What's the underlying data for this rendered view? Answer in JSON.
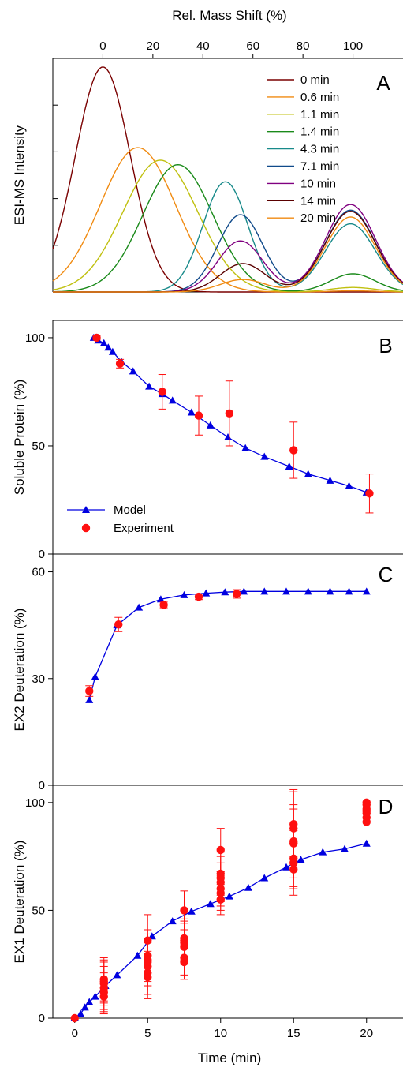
{
  "chart_data": [
    {
      "id": "A",
      "type": "line",
      "panel_letter": "A",
      "xlabel": "Rel. Mass Shift (%)",
      "ylabel": "ESI-MS Intensity",
      "xlim": [
        -20,
        120
      ],
      "ylim": [
        0,
        1
      ],
      "xticks": [
        0,
        20,
        40,
        60,
        80,
        100
      ],
      "xaxis_position": "top",
      "legend": "top-right",
      "grid": false,
      "series": [
        {
          "name": "0 min",
          "color": "#7a0000",
          "peaks": [
            [
              0,
              0.99,
              11
            ]
          ]
        },
        {
          "name": "0.6 min",
          "color": "#f08a10",
          "peaks": [
            [
              14,
              0.635,
              15
            ],
            [
              100,
              0.005,
              9
            ]
          ]
        },
        {
          "name": "1.1 min",
          "color": "#c0c010",
          "peaks": [
            [
              23,
              0.58,
              15
            ],
            [
              100,
              0.02,
              9
            ]
          ]
        },
        {
          "name": "1.4 min",
          "color": "#1a8a1a",
          "peaks": [
            [
              30,
              0.56,
              14
            ],
            [
              100,
              0.08,
              9
            ]
          ]
        },
        {
          "name": "4.3 min",
          "color": "#188a8a",
          "peaks": [
            [
              49,
              0.485,
              9
            ],
            [
              99,
              0.3,
              10
            ]
          ]
        },
        {
          "name": "7.1 min",
          "color": "#104a8a",
          "peaks": [
            [
              55,
              0.34,
              9
            ],
            [
              99,
              0.36,
              10
            ]
          ]
        },
        {
          "name": "10 min",
          "color": "#800080",
          "peaks": [
            [
              55,
              0.225,
              9
            ],
            [
              99,
              0.385,
              10
            ]
          ]
        },
        {
          "name": "14 min",
          "color": "#5a0000",
          "peaks": [
            [
              56,
              0.125,
              9
            ],
            [
              99,
              0.355,
              10
            ]
          ]
        },
        {
          "name": "20 min",
          "color": "#f08a10",
          "peaks": [
            [
              56,
              0.055,
              9
            ],
            [
              99,
              0.33,
              10
            ]
          ]
        }
      ]
    },
    {
      "id": "B",
      "type": "line",
      "panel_letter": "B",
      "ylabel": "Soluble Protein (%)",
      "xlim": [
        -1.5,
        22.5
      ],
      "ylim": [
        0,
        108
      ],
      "yticks": [
        0,
        50,
        100
      ],
      "legend": "bottom-left",
      "legend_entries": [
        "Model",
        "Experiment"
      ],
      "model": {
        "name": "Model",
        "color": "#0000e0",
        "x": [
          1.3,
          1.6,
          2.0,
          2.3,
          2.6,
          3.2,
          4.0,
          5.1,
          6.0,
          6.7,
          8.0,
          9.3,
          10.5,
          11.7,
          13.0,
          14.7,
          16.0,
          17.5,
          18.8,
          20.0
        ],
        "y": [
          100,
          98.8,
          97.5,
          95.5,
          93.5,
          89,
          84.5,
          77.5,
          74,
          71,
          65.5,
          59.5,
          54,
          49,
          45,
          40.5,
          37,
          34,
          31.5,
          28.5
        ]
      },
      "experiment": {
        "name": "Experiment",
        "color": "#ff1010",
        "x": [
          1.5,
          3.1,
          6.0,
          8.5,
          10.6,
          15.0,
          20.2
        ],
        "y": [
          100,
          88,
          75,
          64,
          65,
          48,
          28
        ],
        "err": [
          1,
          2,
          8,
          9,
          15,
          13,
          9
        ]
      }
    },
    {
      "id": "C",
      "type": "line",
      "panel_letter": "C",
      "ylabel": "EX2 Deuteration (%)",
      "xlim": [
        -1.5,
        22.5
      ],
      "ylim": [
        0,
        65
      ],
      "yticks": [
        0,
        30,
        60
      ],
      "model": {
        "color": "#0000e0",
        "x": [
          1.0,
          1.4,
          2.9,
          4.4,
          5.9,
          7.5,
          9.0,
          10.3,
          11.6,
          13.0,
          14.5,
          16.0,
          17.5,
          18.8,
          20.0
        ],
        "y": [
          24,
          30.5,
          45,
          50,
          52.3,
          53.5,
          54,
          54.3,
          54.5,
          54.5,
          54.5,
          54.5,
          54.5,
          54.5,
          54.5
        ]
      },
      "experiment": {
        "color": "#ff1010",
        "x": [
          1.0,
          3.0,
          6.1,
          8.5,
          11.1
        ],
        "y": [
          26.5,
          45.2,
          50.7,
          53,
          53.8
        ],
        "err": [
          1.5,
          2,
          0.8,
          0.8,
          1.2
        ]
      }
    },
    {
      "id": "D",
      "type": "line",
      "panel_letter": "D",
      "xlabel": "Time (min)",
      "ylabel": "EX1 Deuteration (%)",
      "xlim": [
        -1.5,
        22.5
      ],
      "ylim": [
        0,
        108
      ],
      "xticks": [
        0,
        5,
        10,
        15,
        20
      ],
      "yticks": [
        0,
        50,
        100
      ],
      "model": {
        "color": "#0000e0",
        "x": [
          0.0,
          0.4,
          0.7,
          1.0,
          1.4,
          2.1,
          2.9,
          4.3,
          5.3,
          6.7,
          8.0,
          9.3,
          10.6,
          11.9,
          13.0,
          14.5,
          15.5,
          17.0,
          18.5,
          20.0
        ],
        "y": [
          0,
          2,
          5,
          7.5,
          10,
          15,
          20,
          29,
          38,
          45,
          49.5,
          53,
          56.5,
          60.5,
          65,
          70,
          73.5,
          77,
          78.5,
          81
        ]
      },
      "experiment": {
        "color": "#ff1010",
        "x": [
          0,
          2,
          2,
          2,
          2,
          2,
          2,
          5,
          5,
          5,
          5,
          5,
          5,
          5,
          7.5,
          7.5,
          7.5,
          7.5,
          7.5,
          7.5,
          7.5,
          10,
          10,
          10,
          10,
          10,
          10,
          10,
          15,
          15,
          15,
          15,
          15,
          15,
          15,
          20,
          20,
          20,
          20,
          20,
          20,
          20
        ],
        "y": [
          0,
          10,
          12,
          14,
          16,
          17,
          18,
          19,
          21,
          24,
          26,
          27,
          29,
          36,
          26,
          28,
          33,
          35,
          36,
          37,
          50,
          55,
          58,
          60,
          63,
          65,
          67,
          78,
          69,
          72,
          74,
          81,
          82,
          88,
          90,
          91,
          93,
          95,
          96,
          97,
          99,
          100
        ],
        "err": [
          0,
          8,
          9,
          10,
          10,
          10,
          10,
          10,
          10,
          11,
          11,
          12,
          12,
          12,
          8,
          8,
          8,
          9,
          9,
          9,
          9,
          7,
          8,
          8,
          9,
          10,
          10,
          10,
          12,
          12,
          13,
          16,
          17,
          18,
          15,
          0,
          0,
          0,
          0,
          0,
          0,
          0
        ]
      }
    }
  ]
}
